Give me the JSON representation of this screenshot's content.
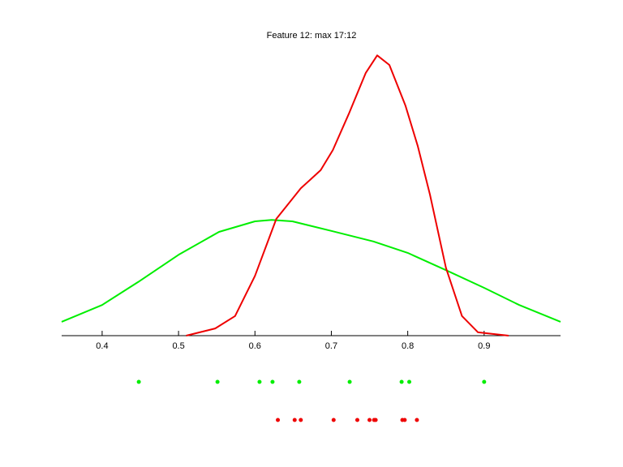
{
  "chart_data": {
    "type": "line",
    "title": "Feature 12: max 17:12",
    "xlim": [
      0.347,
      1.0
    ],
    "xticks": [
      0.4,
      0.5,
      0.6,
      0.7,
      0.8,
      0.9
    ],
    "ylim": [
      0,
      6
    ],
    "series": [
      {
        "color": "#00ee00",
        "x": [
          0.347,
          0.4,
          0.447,
          0.5,
          0.553,
          0.6,
          0.622,
          0.649,
          0.7,
          0.755,
          0.8,
          0.85,
          0.9,
          0.946,
          1.0
        ],
        "values": [
          0.29,
          0.64,
          1.12,
          1.69,
          2.17,
          2.39,
          2.42,
          2.39,
          2.19,
          1.97,
          1.73,
          1.37,
          1.0,
          0.64,
          0.29
        ]
      },
      {
        "color": "#ee0000",
        "x": [
          0.51,
          0.548,
          0.574,
          0.6,
          0.628,
          0.66,
          0.686,
          0.702,
          0.723,
          0.745,
          0.76,
          0.776,
          0.797,
          0.813,
          0.829,
          0.85,
          0.871,
          0.892,
          0.932
        ],
        "values": [
          0,
          0.15,
          0.41,
          1.25,
          2.44,
          3.08,
          3.46,
          3.88,
          4.64,
          5.49,
          5.86,
          5.66,
          4.81,
          3.97,
          2.95,
          1.42,
          0.41,
          0.07,
          0
        ]
      }
    ],
    "rug": [
      {
        "color": "#00ee00",
        "values": [
          0.448,
          0.551,
          0.606,
          0.623,
          0.658,
          0.724,
          0.792,
          0.802,
          0.9
        ]
      },
      {
        "color": "#ee0000",
        "values": [
          0.63,
          0.652,
          0.66,
          0.703,
          0.734,
          0.75,
          0.756,
          0.758,
          0.793,
          0.796,
          0.812
        ]
      }
    ]
  }
}
